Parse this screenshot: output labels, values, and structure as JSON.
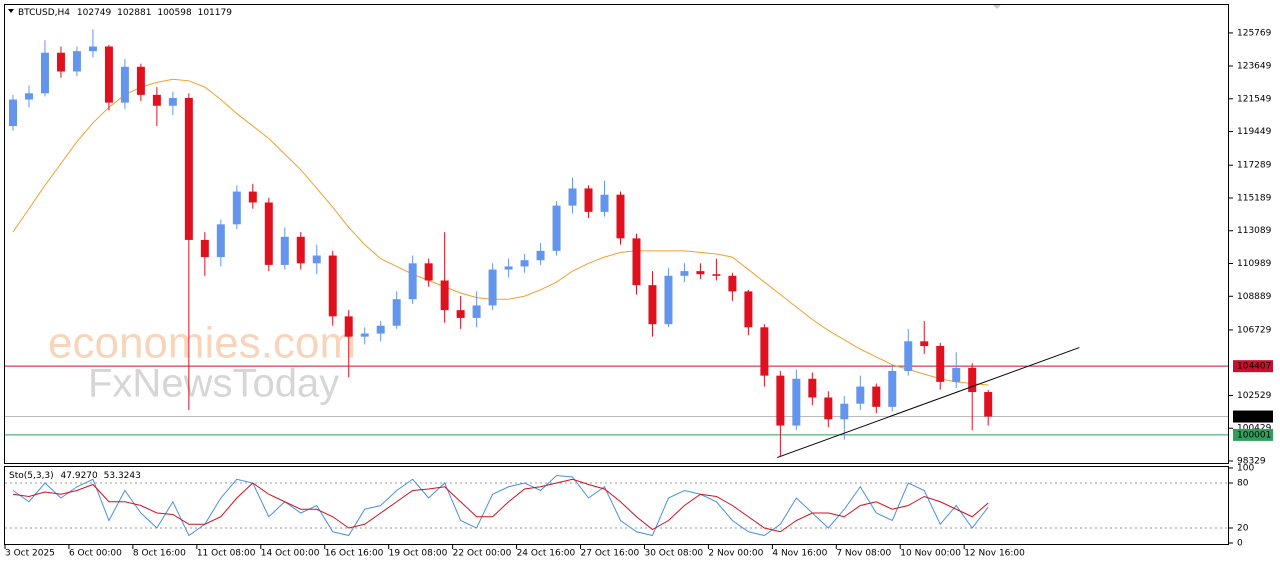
{
  "chart_data": {
    "type": "candlestick",
    "title": "BTCUSD,H4",
    "up_color": "#6495ed",
    "down_color": "#e0101e",
    "open": [
      119800,
      121500,
      121900,
      124500,
      123300,
      124600,
      124900,
      121300,
      123600,
      121800,
      121100,
      121600,
      112500,
      111400,
      113500,
      115600,
      114900,
      110900,
      112700,
      111000,
      111500,
      107600,
      106300,
      106500,
      107000,
      108700,
      111000,
      109900,
      108000,
      107500,
      108300,
      110600,
      110800,
      111200,
      111800,
      114700,
      115800,
      114300,
      115400,
      112600,
      109600,
      107100,
      110200,
      110500,
      110300,
      110200,
      109200,
      106900,
      103800,
      100600,
      103600,
      102400,
      101000,
      102000,
      103100,
      101800,
      104100,
      106000,
      105700,
      103400,
      104300,
      102749
    ],
    "high": [
      121800,
      122400,
      125300,
      124900,
      124900,
      126000,
      125000,
      124100,
      123800,
      122300,
      122000,
      121900,
      113000,
      113800,
      116000,
      116100,
      115200,
      113300,
      113000,
      112200,
      111800,
      108000,
      106900,
      107300,
      109200,
      111500,
      111300,
      113000,
      108900,
      109200,
      111000,
      111300,
      111600,
      112300,
      115000,
      116500,
      116000,
      116300,
      115600,
      112900,
      110500,
      110700,
      111000,
      111000,
      111300,
      110400,
      109300,
      107100,
      104100,
      104200,
      104000,
      102800,
      102500,
      103800,
      103300,
      104500,
      106800,
      107300,
      105900,
      105300,
      104600,
      102881
    ],
    "low": [
      119500,
      121000,
      121700,
      122900,
      123000,
      124200,
      120800,
      120900,
      121400,
      119800,
      120500,
      101600,
      110200,
      110800,
      113200,
      114500,
      110500,
      110600,
      110600,
      110300,
      107000,
      103700,
      105800,
      106000,
      106800,
      108400,
      109500,
      107200,
      106800,
      106900,
      108000,
      110100,
      110400,
      110900,
      111500,
      114200,
      113900,
      114000,
      112200,
      109000,
      106300,
      106900,
      109800,
      110000,
      109900,
      108600,
      106400,
      103100,
      98600,
      100300,
      101900,
      100500,
      99700,
      101600,
      101400,
      101500,
      103800,
      105200,
      102900,
      103000,
      100300,
      100598
    ],
    "close": [
      121500,
      121900,
      124500,
      123300,
      124600,
      124900,
      121300,
      123600,
      121800,
      121100,
      121600,
      112500,
      111400,
      113500,
      115600,
      114900,
      110900,
      112700,
      111000,
      111500,
      107600,
      106300,
      106500,
      107000,
      108700,
      111000,
      109900,
      108000,
      107500,
      108300,
      110600,
      110800,
      111200,
      111800,
      114700,
      115800,
      114300,
      115400,
      112600,
      109600,
      107100,
      110200,
      110500,
      110300,
      110200,
      109200,
      106900,
      103800,
      100600,
      103600,
      102400,
      101000,
      102000,
      103100,
      101800,
      104100,
      106000,
      105700,
      103400,
      104300,
      102749,
      101179
    ],
    "ma": {
      "color": "#f0a030",
      "values": [
        113000,
        114500,
        116000,
        117400,
        118800,
        120000,
        121000,
        121800,
        122300,
        122600,
        122800,
        122700,
        122300,
        121500,
        120600,
        119800,
        119000,
        118000,
        117000,
        115800,
        114600,
        113300,
        112200,
        111300,
        110800,
        110300,
        109900,
        109500,
        109100,
        108800,
        108700,
        108700,
        108900,
        109300,
        109800,
        110500,
        111000,
        111400,
        111700,
        111800,
        111800,
        111800,
        111800,
        111700,
        111600,
        111400,
        110600,
        109800,
        109000,
        108200,
        107400,
        106700,
        106100,
        105500,
        105000,
        104500,
        104200,
        103900,
        103600,
        103400,
        103300,
        103200
      ]
    },
    "ylim": [
      98200,
      127560
    ],
    "yticks": [
      98329,
      100429,
      102529,
      106729,
      108889,
      110989,
      113089,
      115189,
      117289,
      119449,
      121549,
      123649,
      125769
    ],
    "xlim": [
      -0.5,
      76
    ],
    "xticks": [
      {
        "value": 0,
        "label": "3 Oct 2025"
      },
      {
        "value": 4,
        "label": "6 Oct 00:00"
      },
      {
        "value": 8,
        "label": "8 Oct 16:00"
      },
      {
        "value": 12,
        "label": "11 Oct 08:00"
      },
      {
        "value": 16,
        "label": "14 Oct 00:00"
      },
      {
        "value": 20,
        "label": "16 Oct 16:00"
      },
      {
        "value": 24,
        "label": "19 Oct 08:00"
      },
      {
        "value": 28,
        "label": "22 Oct 00:00"
      },
      {
        "value": 32,
        "label": "24 Oct 16:00"
      },
      {
        "value": 36,
        "label": "27 Oct 16:00"
      },
      {
        "value": 40,
        "label": "30 Oct 08:00"
      },
      {
        "value": 44,
        "label": "2 Nov 00:00"
      },
      {
        "value": 48,
        "label": "4 Nov 16:00"
      },
      {
        "value": 52,
        "label": "7 Nov 08:00"
      },
      {
        "value": 56,
        "label": "10 Nov 00:00"
      },
      {
        "value": 60,
        "label": "12 Nov 16:00"
      }
    ],
    "levels": [
      {
        "value": 104407,
        "color": "#c8102e"
      },
      {
        "value": 101179,
        "color": "#bbbbbb",
        "label_color": "#000000"
      },
      {
        "value": 100001,
        "color": "#2e9e5b"
      }
    ],
    "trendline": {
      "x": [
        47.8,
        66.7
      ],
      "y": [
        98550,
        105600
      ],
      "color": "#000000"
    },
    "watermark": [
      "economies.com",
      "FxNewsToday"
    ],
    "oscillator": {
      "type": "line",
      "name": "Sto(5,3,3)",
      "readout": [
        {
          "value": 47.927,
          "label": "47.9270"
        },
        {
          "value": 53.3243,
          "label": "53.3243"
        }
      ],
      "ylim": [
        0,
        100
      ],
      "yticks": [
        0,
        20,
        80,
        100
      ],
      "levels": [
        20,
        80
      ],
      "series": [
        {
          "color": "#4a90e2",
          "values": [
            70,
            55,
            80,
            60,
            75,
            85,
            30,
            70,
            40,
            20,
            55,
            10,
            25,
            60,
            85,
            80,
            35,
            55,
            40,
            50,
            15,
            10,
            45,
            50,
            70,
            85,
            60,
            80,
            30,
            20,
            65,
            75,
            80,
            70,
            90,
            88,
            60,
            75,
            30,
            15,
            10,
            60,
            70,
            65,
            55,
            30,
            15,
            10,
            25,
            60,
            40,
            20,
            45,
            75,
            40,
            30,
            80,
            70,
            25,
            50,
            20,
            47.927
          ]
        },
        {
          "color": "#d0101e",
          "values": [
            65,
            62,
            68,
            65,
            70,
            78,
            55,
            55,
            50,
            40,
            38,
            25,
            25,
            35,
            60,
            80,
            65,
            55,
            45,
            45,
            35,
            20,
            25,
            40,
            55,
            70,
            72,
            75,
            55,
            35,
            35,
            55,
            72,
            75,
            80,
            85,
            78,
            72,
            55,
            35,
            18,
            30,
            50,
            65,
            62,
            50,
            35,
            20,
            15,
            30,
            40,
            40,
            35,
            50,
            55,
            45,
            50,
            62,
            55,
            45,
            35,
            53.3243
          ]
        }
      ]
    }
  }
}
